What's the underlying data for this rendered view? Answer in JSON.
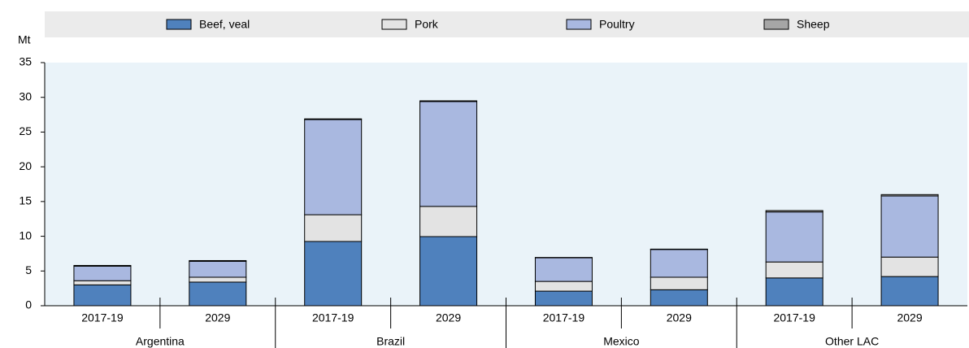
{
  "chart_data": {
    "type": "stacked_bar",
    "y_label": "Mt",
    "groups": [
      "Argentina",
      "Brazil",
      "Mexico",
      "Other LAC"
    ],
    "categories": [
      "2017-19",
      "2029",
      "2017-19",
      "2029",
      "2017-19",
      "2029",
      "2017-19",
      "2029"
    ],
    "series": [
      {
        "name": "Beef, veal",
        "color": "#4f81bd",
        "values": [
          3.0,
          3.4,
          9.25,
          9.95,
          2.1,
          2.3,
          4.0,
          4.2
        ]
      },
      {
        "name": "Pork",
        "color": "#e3e3e3",
        "values": [
          0.6,
          0.7,
          3.85,
          4.35,
          1.4,
          1.8,
          2.3,
          2.8
        ]
      },
      {
        "name": "Poultry",
        "color": "#a9b8e0",
        "values": [
          2.1,
          2.3,
          13.7,
          15.1,
          3.4,
          4.0,
          7.2,
          8.8
        ]
      },
      {
        "name": "Sheep",
        "color": "#a6a6a6",
        "values": [
          0.1,
          0.1,
          0.1,
          0.1,
          0.05,
          0.05,
          0.2,
          0.2
        ]
      }
    ],
    "ylim": [
      0,
      35
    ],
    "yticks": [
      0,
      5,
      10,
      15,
      20,
      25,
      30,
      35
    ],
    "grid": false
  }
}
